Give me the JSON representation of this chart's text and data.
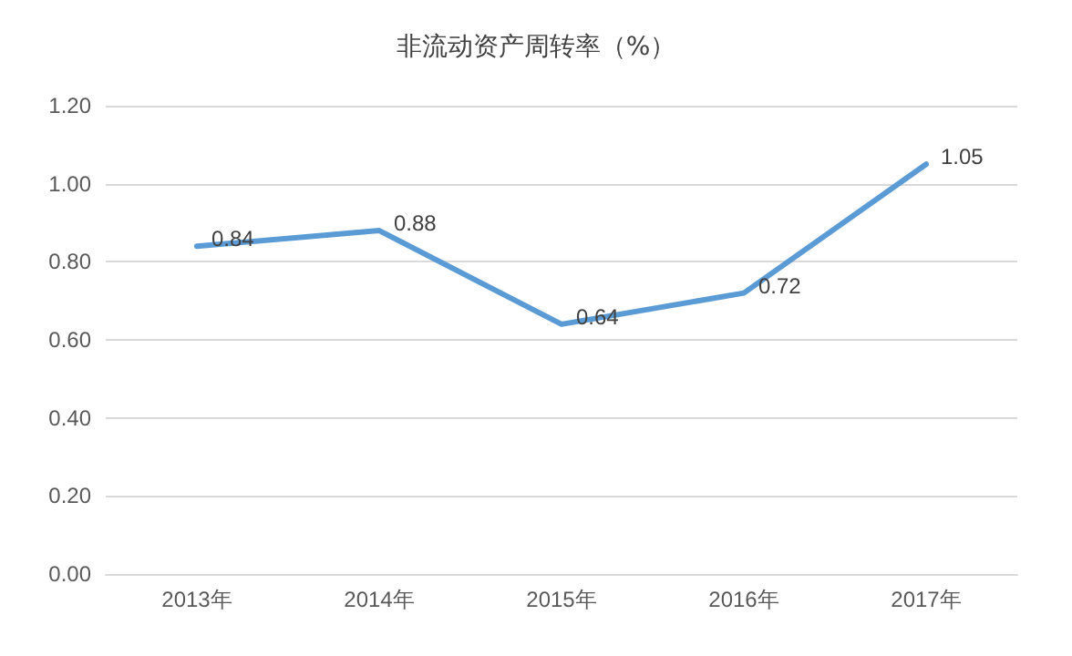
{
  "chart_data": {
    "type": "line",
    "title": "非流动资产周转率（%）",
    "categories": [
      "2013年",
      "2014年",
      "2015年",
      "2016年",
      "2017年"
    ],
    "series": [
      {
        "color": "#5b9bd5",
        "values": [
          0.84,
          0.88,
          0.64,
          0.72,
          1.05
        ]
      }
    ],
    "ylim": [
      0,
      1.2
    ],
    "yticks": [
      {
        "value": 0,
        "label": "0.00"
      },
      {
        "value": 0.2,
        "label": "0.20"
      },
      {
        "value": 0.4,
        "label": "0.40"
      },
      {
        "value": 0.6,
        "label": "0.60"
      },
      {
        "value": 0.8,
        "label": "0.80"
      },
      {
        "value": 1,
        "label": "1.00"
      },
      {
        "value": 1.2,
        "label": "1.20"
      }
    ],
    "grid": "y",
    "data_labels": true,
    "marker": "none",
    "line_style": "solid"
  }
}
